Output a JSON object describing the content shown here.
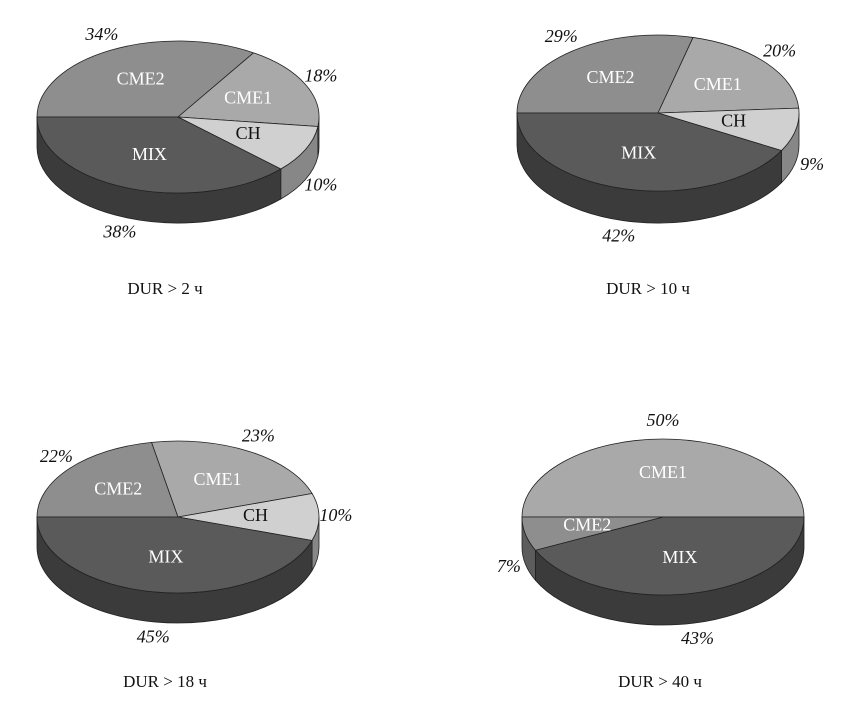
{
  "chart_data": [
    {
      "type": "pie3d",
      "title": "DUR > 2 ч",
      "categories": [
        "CME2",
        "CME1",
        "CH",
        "MIX"
      ],
      "values": [
        34,
        18,
        10,
        38
      ],
      "value_labels": [
        "34%",
        "18%",
        "10%",
        "38%"
      ],
      "colors": [
        "#8e8e8e",
        "#a9a9a9",
        "#d0d0d0",
        "#5a5a5a"
      ]
    },
    {
      "type": "pie3d",
      "title": "DUR > 10 ч",
      "categories": [
        "CME2",
        "CME1",
        "CH",
        "MIX"
      ],
      "values": [
        29,
        20,
        9,
        42
      ],
      "value_labels": [
        "29%",
        "20%",
        "9%",
        "42%"
      ],
      "colors": [
        "#8e8e8e",
        "#a9a9a9",
        "#d0d0d0",
        "#5a5a5a"
      ]
    },
    {
      "type": "pie3d",
      "title": "DUR > 18 ч",
      "categories": [
        "CME2",
        "CME1",
        "CH",
        "MIX"
      ],
      "values": [
        22,
        23,
        10,
        45
      ],
      "value_labels": [
        "22%",
        "23%",
        "10%",
        "45%"
      ],
      "colors": [
        "#8e8e8e",
        "#a9a9a9",
        "#d0d0d0",
        "#5a5a5a"
      ]
    },
    {
      "type": "pie3d",
      "title": "DUR > 40 ч",
      "categories": [
        "CME1",
        "MIX",
        "CME2"
      ],
      "values": [
        50,
        43,
        7
      ],
      "value_labels": [
        "50%",
        "43%",
        "7%"
      ],
      "colors": [
        "#a9a9a9",
        "#5a5a5a",
        "#8e8e8e"
      ]
    }
  ]
}
